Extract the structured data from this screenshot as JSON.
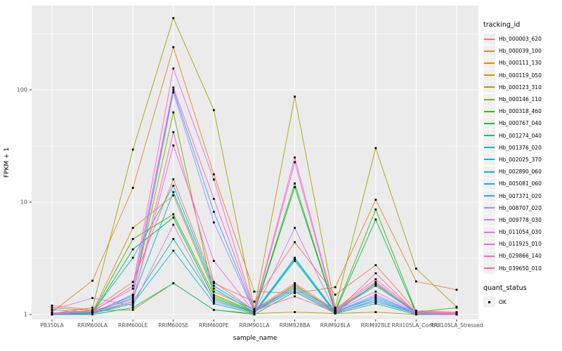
{
  "figure": {
    "background": "#FFFFFF",
    "panel_background": "#EBEBEB",
    "grid_color": "#FFFFFF",
    "tick_color": "#333333",
    "tick_label_color": "#4D4D4D",
    "axis_title_color": "#000000",
    "point_color": "#000000"
  },
  "legend": {
    "tracking_title": "tracking_id",
    "quant_title": "quant_status",
    "quant_item_label": "OK"
  },
  "chart_data": {
    "type": "line",
    "title": "",
    "xlabel": "sample_name",
    "ylabel": "FPKM + 1",
    "y_scale": "log10",
    "grid": true,
    "legend_position": "right",
    "point_shape": "square",
    "y_ticks": [
      1,
      10,
      100
    ],
    "y_minor_ticks": [
      3.162,
      31.62,
      316.2
    ],
    "ylim": [
      0.9,
      560
    ],
    "categories": [
      "PB350LA",
      "RRIM600LA",
      "RRIM600LE",
      "RRIM600SE",
      "RRIM600PE",
      "RRIM901LA",
      "RRIM928BA",
      "RRIM928LA",
      "RRIM928LE",
      "RRII105LA_Control",
      "RRII105LA_Stressed"
    ],
    "series": [
      {
        "name": "Hb_000003_620",
        "color": "#F8766D",
        "values": [
          1.2,
          1.1,
          1.95,
          16,
          1.9,
          1.3,
          4.4,
          1.5,
          2.75,
          1.08,
          1.05
        ]
      },
      {
        "name": "Hb_000039_100",
        "color": "#E88526",
        "values": [
          1.05,
          2.0,
          13.4,
          240,
          17.7,
          1.6,
          1.55,
          1.75,
          10.5,
          1.97,
          1.66
        ]
      },
      {
        "name": "Hb_000111_130",
        "color": "#D89000",
        "values": [
          1.0,
          1.05,
          5.9,
          11.5,
          1.6,
          1.1,
          1.8,
          1.1,
          1.85,
          1.05,
          1.0
        ]
      },
      {
        "name": "Hb_000119_050",
        "color": "#C09B00",
        "values": [
          1.15,
          1.08,
          1.1,
          1.9,
          1.1,
          1.02,
          1.05,
          1.02,
          1.05,
          1.0,
          1.0
        ]
      },
      {
        "name": "Hb_000123_310",
        "color": "#A3A500",
        "values": [
          1.02,
          1.15,
          29.4,
          435,
          66,
          1.12,
          87,
          1.15,
          30.3,
          2.56,
          1.17
        ]
      },
      {
        "name": "Hb_000146_110",
        "color": "#7CAE00",
        "values": [
          1.0,
          1.02,
          1.5,
          63,
          1.45,
          1.05,
          1.85,
          1.05,
          1.3,
          1.02,
          1.02
        ]
      },
      {
        "name": "Hb_000318_460",
        "color": "#39B600",
        "values": [
          1.0,
          1.03,
          4.7,
          7.8,
          1.5,
          1.06,
          14.7,
          1.08,
          8.6,
          1.05,
          1.15
        ]
      },
      {
        "name": "Hb_000767_040",
        "color": "#00BB4E",
        "values": [
          1.0,
          1.02,
          3.8,
          7.3,
          1.4,
          1.04,
          13.6,
          1.06,
          7.0,
          1.03,
          1.02
        ]
      },
      {
        "name": "Hb_001274_040",
        "color": "#00BF7D",
        "values": [
          1.0,
          1.0,
          1.15,
          1.9,
          1.1,
          1.0,
          1.6,
          1.02,
          1.25,
          1.0,
          1.0
        ]
      },
      {
        "name": "Hb_001376_020",
        "color": "#00C1A3",
        "values": [
          1.0,
          1.02,
          1.3,
          4.7,
          1.35,
          1.03,
          3.1,
          1.04,
          1.9,
          1.02,
          1.0
        ]
      },
      {
        "name": "Hb_002025_370",
        "color": "#00BFC4",
        "values": [
          1.0,
          1.05,
          3.2,
          14,
          1.8,
          1.08,
          1.75,
          1.08,
          1.8,
          1.04,
          1.02
        ]
      },
      {
        "name": "Hb_002890_060",
        "color": "#00BAE0",
        "values": [
          1.0,
          1.02,
          1.25,
          3.7,
          1.25,
          1.02,
          3.0,
          1.03,
          1.35,
          1.01,
          1.0
        ]
      },
      {
        "name": "Hb_005081_060",
        "color": "#00B0F6",
        "values": [
          1.0,
          1.04,
          1.4,
          12.3,
          1.7,
          1.05,
          3.2,
          1.06,
          1.4,
          1.02,
          1.0
        ]
      },
      {
        "name": "Hb_007371_020",
        "color": "#35A2FF",
        "values": [
          1.0,
          1.03,
          1.5,
          100,
          8.2,
          1.06,
          1.7,
          1.05,
          1.45,
          1.03,
          1.0
        ]
      },
      {
        "name": "Hb_008707_020",
        "color": "#9590FF",
        "values": [
          1.1,
          1.05,
          1.45,
          95,
          6.6,
          1.05,
          1.65,
          1.04,
          1.3,
          1.02,
          1.0
        ]
      },
      {
        "name": "Hb_009778_030",
        "color": "#C77CFF",
        "values": [
          1.1,
          1.4,
          1.2,
          6.3,
          1.3,
          1.04,
          5.9,
          1.06,
          1.5,
          1.03,
          1.01
        ]
      },
      {
        "name": "Hb_011054_030",
        "color": "#E76BF3",
        "values": [
          1.02,
          1.08,
          1.35,
          32,
          3.0,
          1.05,
          22.7,
          1.08,
          1.6,
          1.04,
          1.02
        ]
      },
      {
        "name": "Hb_011925_010",
        "color": "#FA62DB",
        "values": [
          1.02,
          1.06,
          1.8,
          155,
          15.9,
          1.1,
          1.9,
          1.1,
          1.95,
          1.05,
          1.02
        ]
      },
      {
        "name": "Hb_029866_140",
        "color": "#FF62BC",
        "values": [
          1.03,
          1.08,
          1.7,
          105,
          10.7,
          1.1,
          25,
          1.12,
          2.06,
          1.06,
          1.03
        ]
      },
      {
        "name": "Hb_039650_010",
        "color": "#FF6A98",
        "values": [
          1.02,
          1.05,
          1.3,
          42,
          1.95,
          1.08,
          1.45,
          1.05,
          2.33,
          1.03,
          1.01
        ]
      }
    ]
  }
}
